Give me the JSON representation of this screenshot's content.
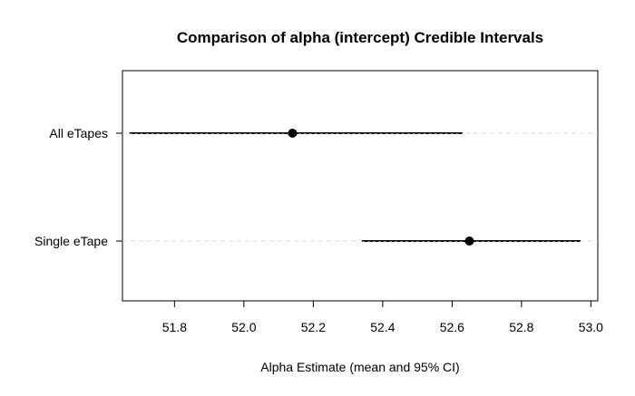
{
  "chart_data": {
    "type": "forest",
    "title": "Comparison of alpha (intercept) Credible Intervals",
    "xlabel": "Alpha Estimate (mean and 95% CI)",
    "ylabel": "",
    "xlim": [
      51.65,
      53.02
    ],
    "xticks": [
      "51.8",
      "52.0",
      "52.2",
      "52.4",
      "52.6",
      "52.8",
      "53.0"
    ],
    "categories": [
      "All eTapes",
      "Single eTape"
    ],
    "means": [
      52.14,
      52.65
    ],
    "lower": [
      51.67,
      52.34
    ],
    "upper": [
      52.63,
      52.97
    ],
    "grid": "horizontal dashed",
    "colors": {
      "interval": "#000000",
      "gridline": "#d9d9d9"
    }
  }
}
